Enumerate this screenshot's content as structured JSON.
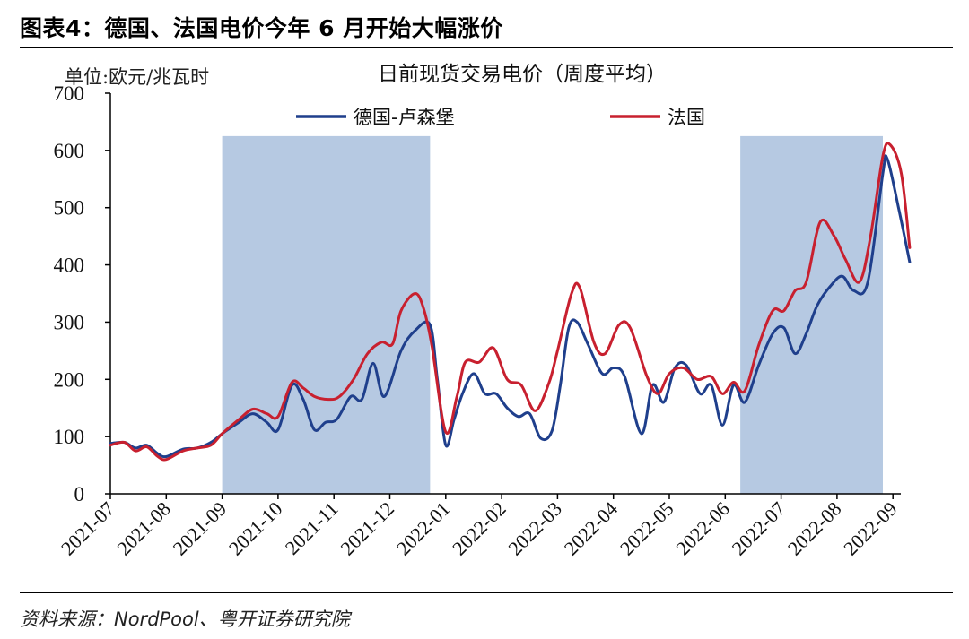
{
  "figure_title": "图表4：德国、法国电价今年 6 月开始大幅涨价",
  "unit_label": "单位:欧元/兆瓦时",
  "source": "资料来源：NordPool、粤开证券研究院",
  "colors": {
    "germany": "#1f3f8c",
    "france": "#c8202f",
    "shade": "#b6c9e2"
  },
  "chart_data": {
    "type": "line",
    "title": "日前现货交易电价（周度平均）",
    "ylim": [
      0,
      700
    ],
    "yticks": [
      0,
      100,
      200,
      300,
      400,
      500,
      600,
      700
    ],
    "xlim": [
      0,
      14.3
    ],
    "xticks": [
      {
        "label": "2021-07",
        "pos": 0
      },
      {
        "label": "2021-08",
        "pos": 1
      },
      {
        "label": "2021-09",
        "pos": 2
      },
      {
        "label": "2021-10",
        "pos": 3
      },
      {
        "label": "2021-11",
        "pos": 4
      },
      {
        "label": "2021-12",
        "pos": 5
      },
      {
        "label": "2022-01",
        "pos": 6
      },
      {
        "label": "2022-02",
        "pos": 7
      },
      {
        "label": "2022-03",
        "pos": 8
      },
      {
        "label": "2022-04",
        "pos": 9
      },
      {
        "label": "2022-05",
        "pos": 10
      },
      {
        "label": "2022-06",
        "pos": 11
      },
      {
        "label": "2022-07",
        "pos": 12
      },
      {
        "label": "2022-08",
        "pos": 13
      },
      {
        "label": "2022-09",
        "pos": 14
      }
    ],
    "shaded_ranges": [
      [
        2.0,
        5.72
      ],
      [
        11.27,
        13.82
      ]
    ],
    "shade_top": 625,
    "legend": [
      {
        "name": "德国-卢森堡",
        "color": "#1f3f8c"
      },
      {
        "name": "法国",
        "color": "#c8202f"
      }
    ],
    "series": [
      {
        "name": "德国-卢森堡",
        "color": "#1f3f8c",
        "points": [
          [
            0.0,
            88
          ],
          [
            0.25,
            90
          ],
          [
            0.45,
            80
          ],
          [
            0.65,
            85
          ],
          [
            0.85,
            70
          ],
          [
            1.0,
            65
          ],
          [
            1.3,
            78
          ],
          [
            1.55,
            80
          ],
          [
            1.8,
            90
          ],
          [
            2.0,
            105
          ],
          [
            2.3,
            125
          ],
          [
            2.55,
            140
          ],
          [
            2.8,
            125
          ],
          [
            3.0,
            112
          ],
          [
            3.25,
            190
          ],
          [
            3.45,
            165
          ],
          [
            3.65,
            112
          ],
          [
            3.85,
            125
          ],
          [
            4.05,
            130
          ],
          [
            4.3,
            170
          ],
          [
            4.5,
            165
          ],
          [
            4.7,
            228
          ],
          [
            4.9,
            170
          ],
          [
            5.2,
            250
          ],
          [
            5.45,
            285
          ],
          [
            5.72,
            295
          ],
          [
            5.85,
            200
          ],
          [
            6.0,
            85
          ],
          [
            6.15,
            130
          ],
          [
            6.3,
            175
          ],
          [
            6.5,
            210
          ],
          [
            6.7,
            175
          ],
          [
            6.9,
            175
          ],
          [
            7.1,
            150
          ],
          [
            7.3,
            135
          ],
          [
            7.5,
            140
          ],
          [
            7.7,
            97
          ],
          [
            7.9,
            110
          ],
          [
            8.05,
            190
          ],
          [
            8.2,
            290
          ],
          [
            8.35,
            300
          ],
          [
            8.55,
            260
          ],
          [
            8.8,
            210
          ],
          [
            9.0,
            220
          ],
          [
            9.2,
            205
          ],
          [
            9.5,
            105
          ],
          [
            9.7,
            190
          ],
          [
            9.9,
            160
          ],
          [
            10.1,
            220
          ],
          [
            10.3,
            225
          ],
          [
            10.55,
            175
          ],
          [
            10.75,
            190
          ],
          [
            10.95,
            120
          ],
          [
            11.15,
            190
          ],
          [
            11.35,
            160
          ],
          [
            11.6,
            225
          ],
          [
            11.85,
            280
          ],
          [
            12.05,
            290
          ],
          [
            12.25,
            245
          ],
          [
            12.45,
            280
          ],
          [
            12.65,
            330
          ],
          [
            12.9,
            365
          ],
          [
            13.1,
            380
          ],
          [
            13.3,
            355
          ],
          [
            13.55,
            370
          ],
          [
            13.82,
            560
          ],
          [
            13.9,
            585
          ],
          [
            14.1,
            500
          ],
          [
            14.3,
            405
          ]
        ]
      },
      {
        "name": "法国",
        "color": "#c8202f",
        "points": [
          [
            0.0,
            85
          ],
          [
            0.25,
            90
          ],
          [
            0.45,
            75
          ],
          [
            0.65,
            82
          ],
          [
            0.85,
            65
          ],
          [
            1.0,
            60
          ],
          [
            1.3,
            75
          ],
          [
            1.55,
            80
          ],
          [
            1.8,
            85
          ],
          [
            2.0,
            105
          ],
          [
            2.3,
            130
          ],
          [
            2.55,
            148
          ],
          [
            2.8,
            140
          ],
          [
            3.0,
            135
          ],
          [
            3.25,
            195
          ],
          [
            3.45,
            185
          ],
          [
            3.65,
            170
          ],
          [
            3.9,
            165
          ],
          [
            4.1,
            170
          ],
          [
            4.35,
            200
          ],
          [
            4.6,
            245
          ],
          [
            4.85,
            265
          ],
          [
            5.05,
            262
          ],
          [
            5.2,
            320
          ],
          [
            5.45,
            350
          ],
          [
            5.6,
            325
          ],
          [
            5.75,
            260
          ],
          [
            6.0,
            108
          ],
          [
            6.2,
            170
          ],
          [
            6.35,
            230
          ],
          [
            6.6,
            230
          ],
          [
            6.85,
            255
          ],
          [
            7.1,
            200
          ],
          [
            7.35,
            190
          ],
          [
            7.6,
            145
          ],
          [
            7.85,
            195
          ],
          [
            8.0,
            250
          ],
          [
            8.25,
            350
          ],
          [
            8.4,
            360
          ],
          [
            8.65,
            265
          ],
          [
            8.85,
            245
          ],
          [
            9.1,
            295
          ],
          [
            9.3,
            290
          ],
          [
            9.6,
            205
          ],
          [
            9.8,
            175
          ],
          [
            10.0,
            210
          ],
          [
            10.25,
            220
          ],
          [
            10.5,
            200
          ],
          [
            10.75,
            205
          ],
          [
            10.95,
            175
          ],
          [
            11.15,
            195
          ],
          [
            11.35,
            180
          ],
          [
            11.6,
            260
          ],
          [
            11.85,
            320
          ],
          [
            12.05,
            320
          ],
          [
            12.25,
            355
          ],
          [
            12.45,
            370
          ],
          [
            12.7,
            475
          ],
          [
            12.95,
            450
          ],
          [
            13.15,
            410
          ],
          [
            13.4,
            370
          ],
          [
            13.6,
            450
          ],
          [
            13.82,
            590
          ],
          [
            13.95,
            610
          ],
          [
            14.15,
            560
          ],
          [
            14.3,
            430
          ]
        ]
      }
    ]
  }
}
